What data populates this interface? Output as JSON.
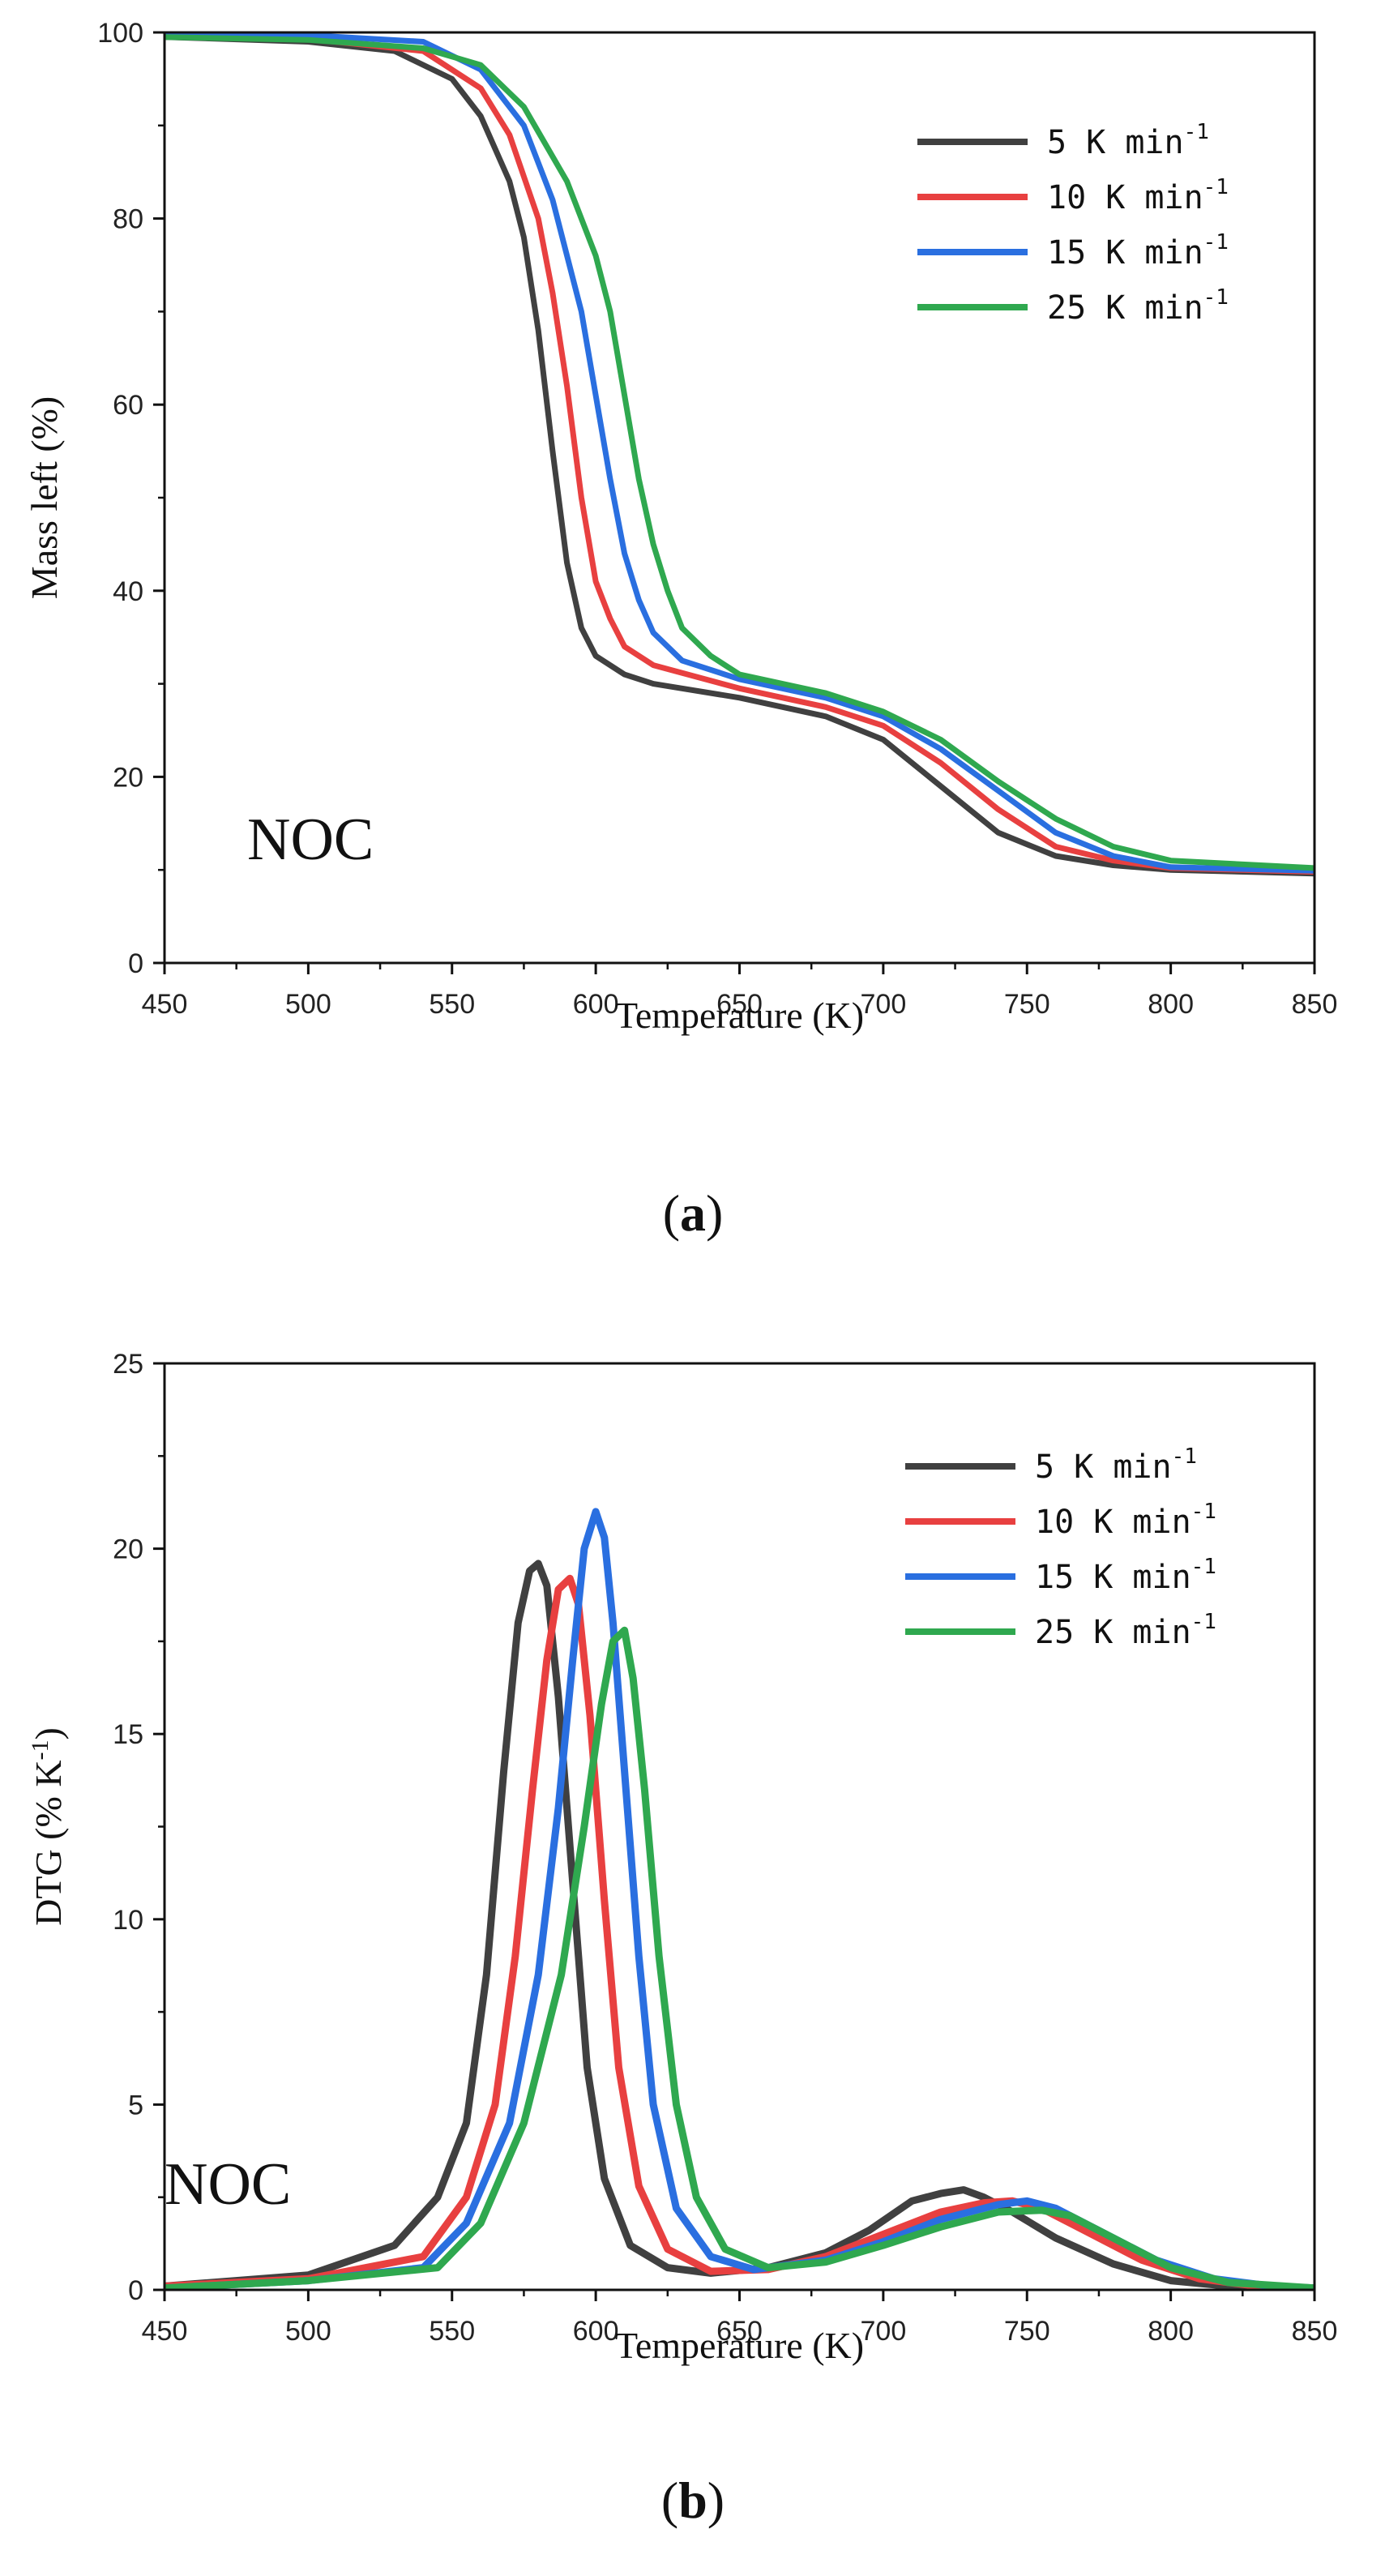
{
  "chart_data": [
    {
      "type": "line",
      "panel_label": "a",
      "annotation": "NOC",
      "xlabel": "Temperature (K)",
      "ylabel": "Mass left (%)",
      "xlim": [
        450,
        850
      ],
      "ylim": [
        0,
        100
      ],
      "xticks": [
        "450",
        "500",
        "550",
        "600",
        "650",
        "700",
        "750",
        "800",
        "850"
      ],
      "yticks": [
        "0",
        "20",
        "40",
        "60",
        "80",
        "100"
      ],
      "legend_position": "top-right",
      "series": [
        {
          "name": "5 K min",
          "sup": "-1",
          "color": "#404040",
          "x": [
            450,
            500,
            530,
            550,
            560,
            570,
            575,
            580,
            585,
            590,
            595,
            600,
            610,
            620,
            650,
            680,
            700,
            720,
            740,
            760,
            780,
            800,
            850
          ],
          "y": [
            99.5,
            99,
            98,
            95,
            91,
            84,
            78,
            68,
            55,
            43,
            36,
            33,
            31,
            30,
            28.5,
            26.5,
            24,
            19,
            14,
            11.5,
            10.5,
            10,
            9.6
          ]
        },
        {
          "name": "10 K min",
          "sup": "-1",
          "color": "#e84040",
          "x": [
            450,
            500,
            540,
            560,
            570,
            580,
            585,
            590,
            595,
            600,
            605,
            610,
            620,
            650,
            680,
            700,
            720,
            740,
            760,
            780,
            800,
            850
          ],
          "y": [
            99.6,
            99.3,
            98,
            94,
            89,
            80,
            72,
            62,
            50,
            41,
            37,
            34,
            32,
            29.5,
            27.5,
            25.5,
            21.5,
            16.5,
            12.5,
            11,
            10.2,
            9.8
          ]
        },
        {
          "name": "15 K min",
          "sup": "-1",
          "color": "#2a6fe0",
          "x": [
            450,
            500,
            540,
            560,
            575,
            585,
            595,
            600,
            605,
            610,
            615,
            620,
            630,
            650,
            680,
            700,
            720,
            740,
            760,
            780,
            800,
            850
          ],
          "y": [
            99.8,
            99.7,
            99,
            96,
            90,
            82,
            70,
            61,
            52,
            44,
            39,
            35.5,
            32.5,
            30.5,
            28.5,
            26.5,
            23,
            18.5,
            14,
            11.5,
            10.3,
            9.9
          ]
        },
        {
          "name": "25 K min",
          "sup": "-1",
          "color": "#2fa84f",
          "x": [
            450,
            500,
            540,
            560,
            575,
            590,
            600,
            605,
            610,
            615,
            620,
            625,
            630,
            640,
            650,
            680,
            700,
            720,
            740,
            760,
            780,
            800,
            850
          ],
          "y": [
            99.5,
            99.2,
            98.3,
            96.5,
            92,
            84,
            76,
            70,
            61,
            52,
            45,
            40,
            36,
            33,
            31,
            29,
            27,
            24,
            19.5,
            15.5,
            12.5,
            11,
            10.2
          ]
        }
      ]
    },
    {
      "type": "line",
      "panel_label": "b",
      "annotation": "NOC",
      "xlabel": "Temperature (K)",
      "ylabel": "DTG (% K",
      "ylabel_sup": "-1",
      "ylabel_close": ")",
      "xlim": [
        450,
        850
      ],
      "ylim": [
        0,
        25
      ],
      "xticks": [
        "450",
        "500",
        "550",
        "600",
        "650",
        "700",
        "750",
        "800",
        "850"
      ],
      "yticks": [
        "0",
        "5",
        "10",
        "15",
        "20",
        "25"
      ],
      "legend_position": "top-right",
      "series": [
        {
          "name": "5 K min",
          "sup": "-1",
          "color": "#404040",
          "x": [
            450,
            500,
            530,
            545,
            555,
            562,
            568,
            573,
            577,
            580,
            583,
            587,
            592,
            597,
            603,
            612,
            625,
            640,
            660,
            680,
            695,
            710,
            720,
            728,
            735,
            745,
            760,
            780,
            800,
            820,
            850
          ],
          "y": [
            0.1,
            0.4,
            1.2,
            2.5,
            4.5,
            8.5,
            14,
            18,
            19.4,
            19.6,
            19,
            16,
            11,
            6,
            3,
            1.2,
            0.6,
            0.45,
            0.6,
            1.0,
            1.6,
            2.4,
            2.6,
            2.7,
            2.5,
            2.1,
            1.4,
            0.7,
            0.25,
            0.1,
            0.05
          ]
        },
        {
          "name": "10 K min",
          "sup": "-1",
          "color": "#e84040",
          "x": [
            450,
            500,
            540,
            555,
            565,
            572,
            578,
            583,
            587,
            591,
            594,
            598,
            603,
            608,
            615,
            625,
            640,
            660,
            680,
            700,
            720,
            735,
            745,
            755,
            770,
            790,
            810,
            830,
            850
          ],
          "y": [
            0.1,
            0.3,
            0.9,
            2.5,
            5,
            9,
            13.5,
            17,
            18.9,
            19.2,
            18.5,
            15.5,
            10.5,
            6,
            2.8,
            1.1,
            0.5,
            0.55,
            0.9,
            1.5,
            2.1,
            2.35,
            2.4,
            2.2,
            1.6,
            0.8,
            0.3,
            0.1,
            0.05
          ]
        },
        {
          "name": "15 K min",
          "sup": "-1",
          "color": "#2a6fe0",
          "x": [
            450,
            500,
            540,
            555,
            570,
            580,
            587,
            592,
            596,
            600,
            603,
            606,
            610,
            615,
            620,
            628,
            640,
            655,
            680,
            700,
            720,
            740,
            750,
            760,
            775,
            795,
            815,
            835,
            850
          ],
          "y": [
            0.05,
            0.25,
            0.6,
            1.8,
            4.5,
            8.5,
            13,
            17,
            20,
            21,
            20.3,
            18,
            14,
            9,
            5,
            2.2,
            0.9,
            0.55,
            0.8,
            1.3,
            1.9,
            2.3,
            2.4,
            2.2,
            1.6,
            0.8,
            0.3,
            0.1,
            0.05
          ]
        },
        {
          "name": "25 K min",
          "sup": "-1",
          "color": "#2fa84f",
          "x": [
            450,
            500,
            545,
            560,
            575,
            588,
            596,
            602,
            606,
            610,
            613,
            617,
            622,
            628,
            635,
            645,
            660,
            680,
            700,
            720,
            740,
            755,
            765,
            780,
            800,
            820,
            850
          ],
          "y": [
            0.05,
            0.25,
            0.6,
            1.8,
            4.5,
            8.5,
            12.5,
            15.8,
            17.5,
            17.8,
            16.5,
            13.5,
            9,
            5,
            2.5,
            1.1,
            0.6,
            0.75,
            1.2,
            1.7,
            2.1,
            2.15,
            2.0,
            1.4,
            0.6,
            0.2,
            0.05
          ]
        }
      ]
    }
  ]
}
